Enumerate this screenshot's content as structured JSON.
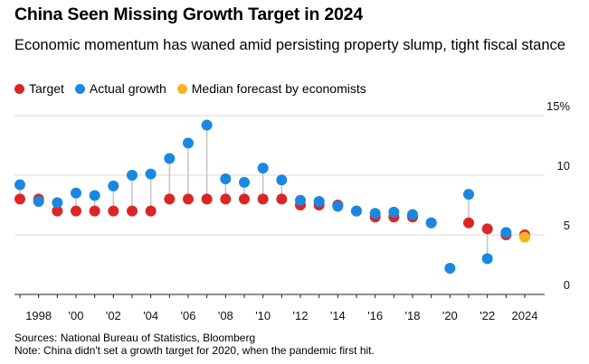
{
  "title": "China Seen Missing Growth Target in 2024",
  "subtitle": "Economic momentum has waned amid persisting property slump, tight fiscal stance",
  "legend": [
    {
      "label": "Target",
      "color": "#dc2626"
    },
    {
      "label": "Actual growth",
      "color": "#1a88e0"
    },
    {
      "label": "Median forecast by economists",
      "color": "#f6b421"
    }
  ],
  "sources": "Sources: National Bureau of Statistics, Bloomberg",
  "note": "Note: China didn't set a growth target for 2020, when the pandemic first hit.",
  "chart_data": {
    "type": "scatter",
    "xlim": [
      1997,
      2025
    ],
    "ylim": [
      0,
      15
    ],
    "y_ticks": [
      {
        "value": 0,
        "label": "0"
      },
      {
        "value": 5,
        "label": "5"
      },
      {
        "value": 10,
        "label": "10"
      },
      {
        "value": 15,
        "label": "15%"
      }
    ],
    "x_ticks": [
      {
        "value": 1998,
        "label": "1998"
      },
      {
        "value": 2000,
        "label": "'00"
      },
      {
        "value": 2002,
        "label": "'02"
      },
      {
        "value": 2004,
        "label": "'04"
      },
      {
        "value": 2006,
        "label": "'06"
      },
      {
        "value": 2008,
        "label": "'08"
      },
      {
        "value": 2010,
        "label": "'10"
      },
      {
        "value": 2012,
        "label": "'12"
      },
      {
        "value": 2014,
        "label": "'14"
      },
      {
        "value": 2016,
        "label": "'16"
      },
      {
        "value": 2018,
        "label": "'18"
      },
      {
        "value": 2020,
        "label": "'20"
      },
      {
        "value": 2022,
        "label": "'22"
      },
      {
        "value": 2024,
        "label": "2024"
      }
    ],
    "years": [
      1997,
      1998,
      1999,
      2000,
      2001,
      2002,
      2003,
      2004,
      2005,
      2006,
      2007,
      2008,
      2009,
      2010,
      2011,
      2012,
      2013,
      2014,
      2015,
      2016,
      2017,
      2018,
      2019,
      2020,
      2021,
      2022,
      2023,
      2024
    ],
    "series": [
      {
        "name": "Target",
        "values": [
          8,
          8,
          7,
          7,
          7,
          7,
          7,
          7,
          8,
          8,
          8,
          8,
          8,
          8,
          8,
          7.5,
          7.5,
          7.5,
          7,
          6.5,
          6.5,
          6.5,
          6,
          null,
          6,
          5.5,
          5,
          5
        ]
      },
      {
        "name": "Actual growth",
        "values": [
          9.2,
          7.8,
          7.7,
          8.5,
          8.3,
          9.1,
          10.0,
          10.1,
          11.4,
          12.7,
          14.2,
          9.7,
          9.4,
          10.6,
          9.6,
          7.9,
          7.8,
          7.4,
          7.0,
          6.8,
          6.9,
          6.7,
          6.0,
          2.2,
          8.4,
          3.0,
          5.2,
          null
        ]
      },
      {
        "name": "Median forecast by economists",
        "values": [
          null,
          null,
          null,
          null,
          null,
          null,
          null,
          null,
          null,
          null,
          null,
          null,
          null,
          null,
          null,
          null,
          null,
          null,
          null,
          null,
          null,
          null,
          null,
          null,
          null,
          null,
          null,
          4.8
        ]
      }
    ]
  }
}
